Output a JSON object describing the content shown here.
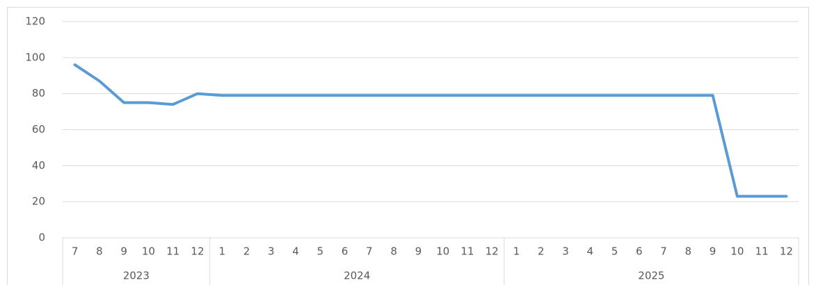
{
  "chart_data": {
    "type": "line",
    "color": "#5b9bd5",
    "grid": true,
    "ylim": [
      0,
      120
    ],
    "yticks": [
      0,
      20,
      40,
      60,
      80,
      100,
      120
    ],
    "groups": [
      {
        "name": "2023",
        "categories": [
          "7",
          "8",
          "9",
          "10",
          "11",
          "12"
        ],
        "values": [
          96,
          87,
          75,
          75,
          74,
          80
        ]
      },
      {
        "name": "2024",
        "categories": [
          "1",
          "2",
          "3",
          "4",
          "5",
          "6",
          "7",
          "8",
          "9",
          "10",
          "11",
          "12"
        ],
        "values": [
          79,
          79,
          79,
          79,
          79,
          79,
          79,
          79,
          79,
          79,
          79,
          79
        ]
      },
      {
        "name": "2025",
        "categories": [
          "1",
          "2",
          "3",
          "4",
          "5",
          "6",
          "7",
          "8",
          "9",
          "10",
          "11",
          "12"
        ],
        "values": [
          79,
          79,
          79,
          79,
          79,
          79,
          79,
          79,
          79,
          23,
          23,
          23
        ]
      }
    ]
  }
}
